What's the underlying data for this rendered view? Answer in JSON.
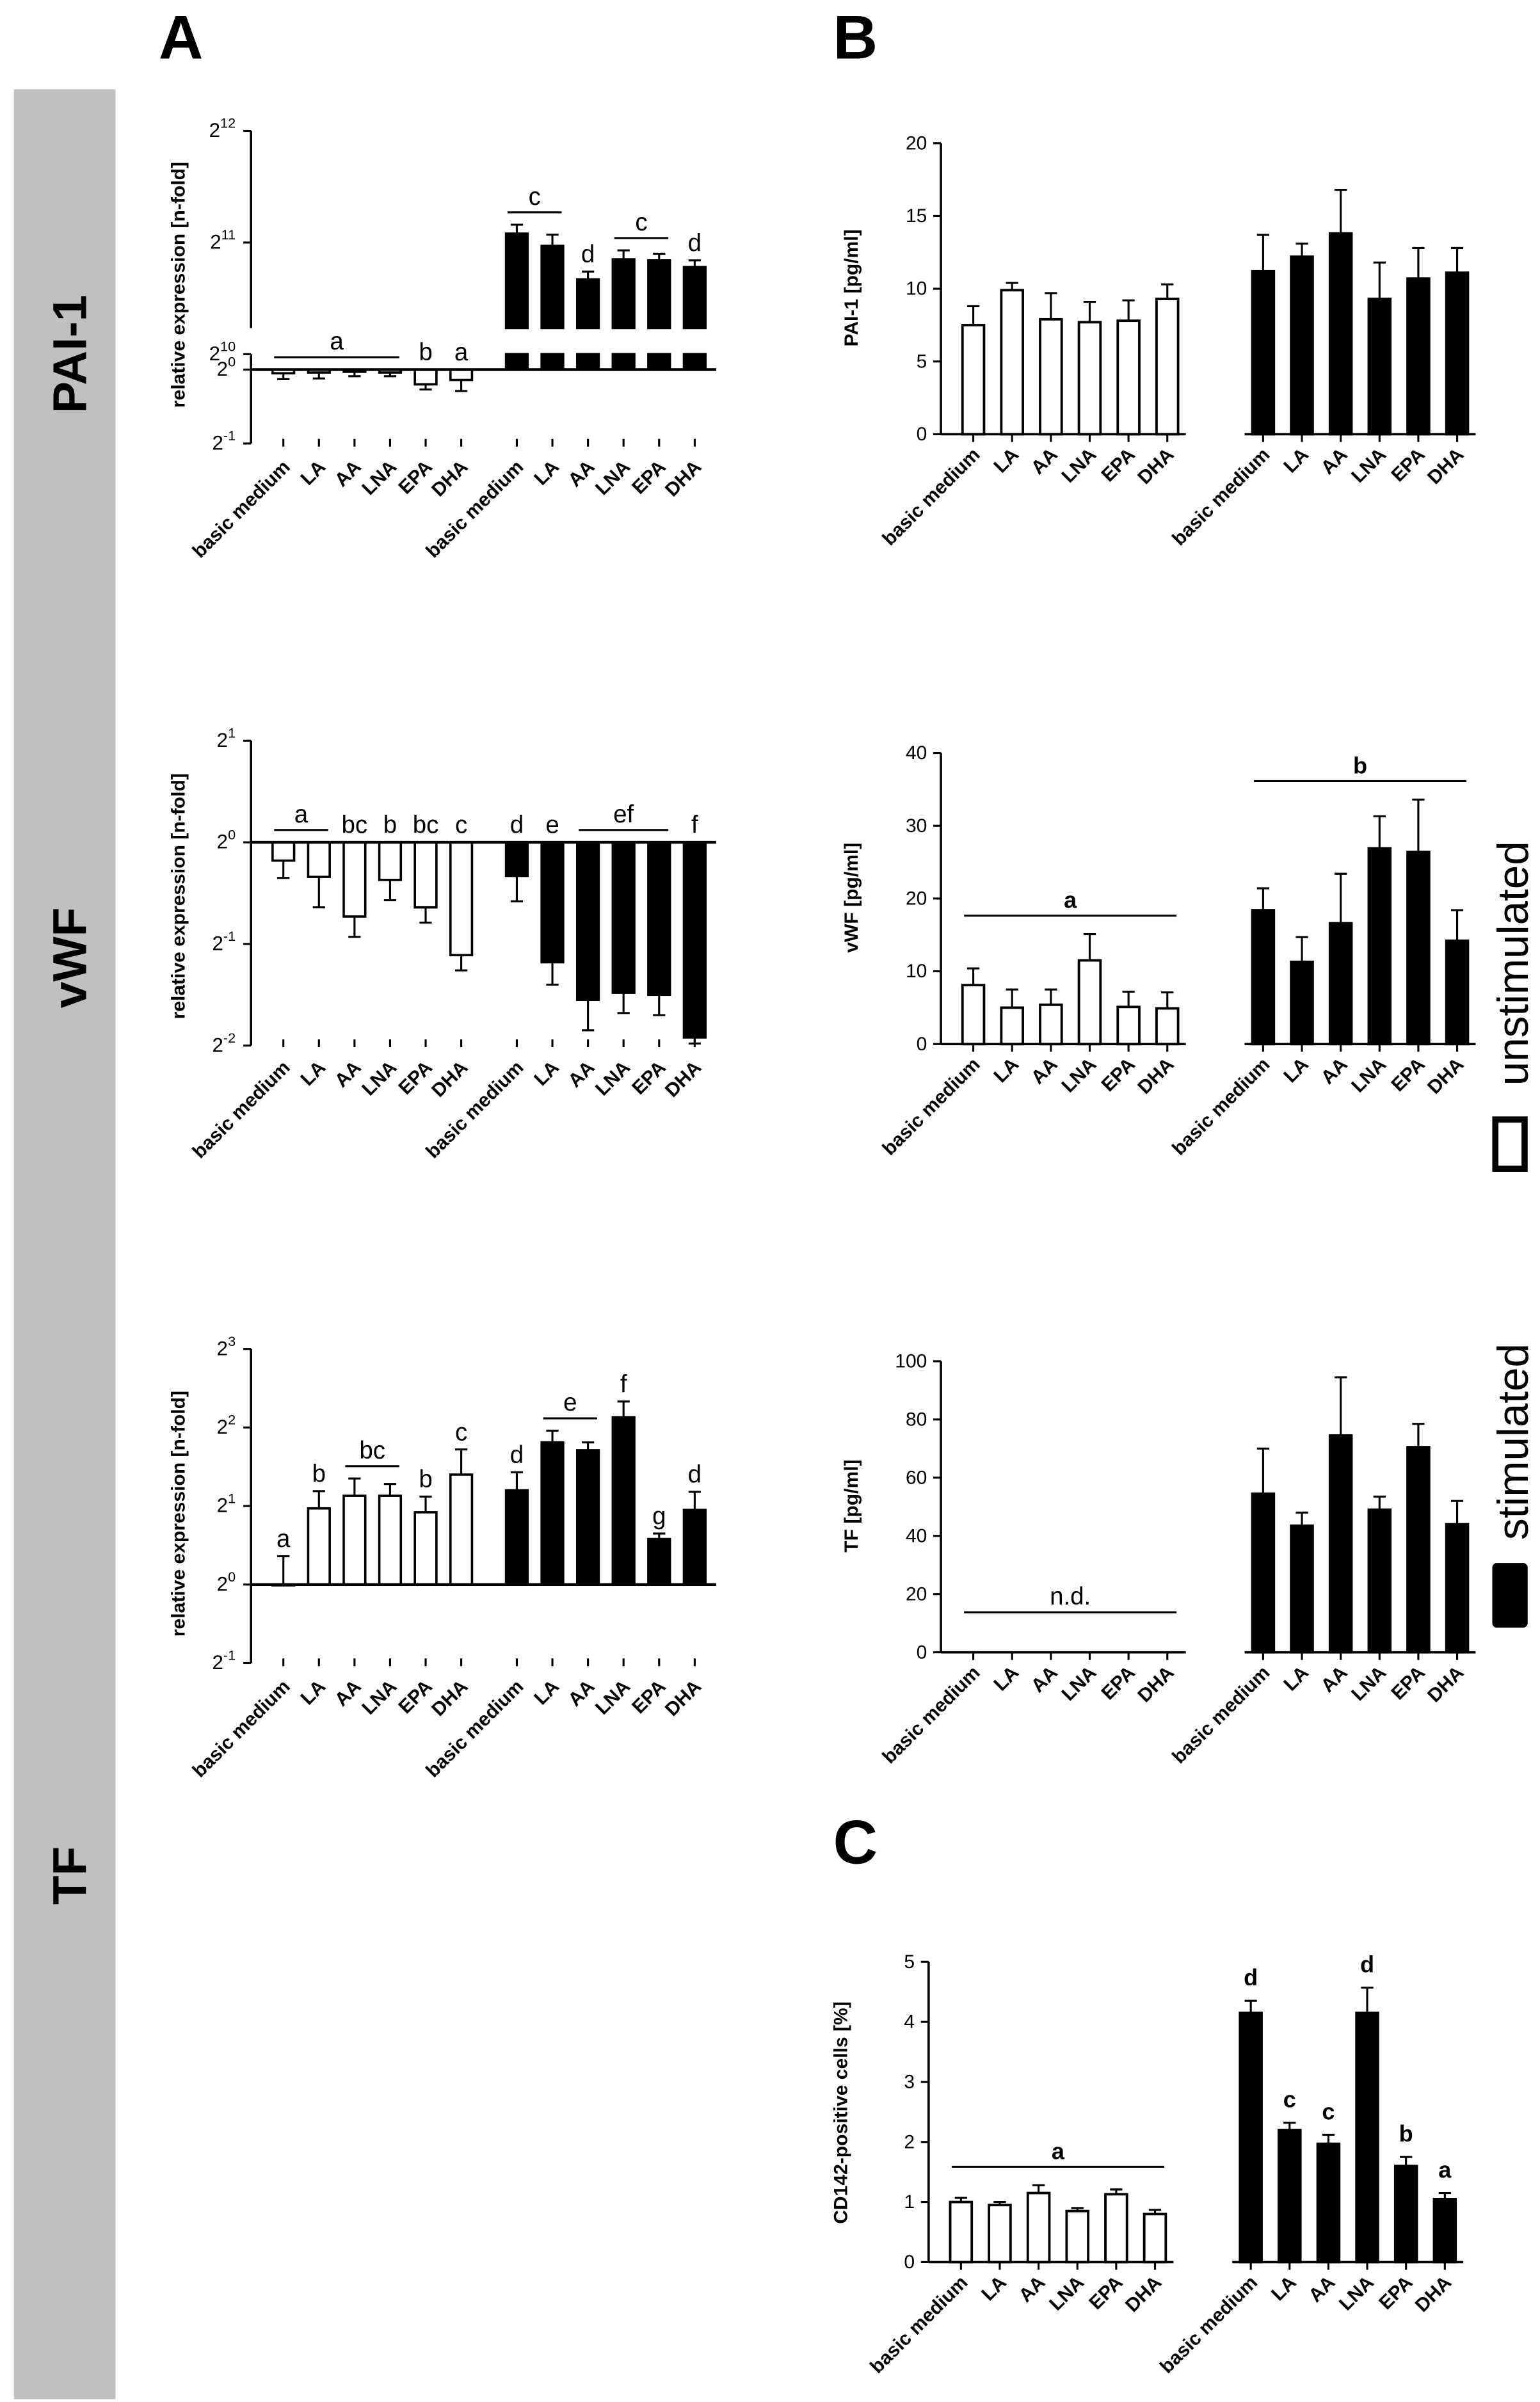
{
  "panel_labels": {
    "A": "A",
    "B": "B",
    "C": "C"
  },
  "row_labels": {
    "pai1": "PAI-1",
    "vwf": "vWF",
    "tf": "TF"
  },
  "legend": {
    "unstimulated": "unstimulated",
    "stimulated": "stimulated"
  },
  "colors": {
    "sidebar": "#c0c0c0",
    "unstimulated_fill": "#ffffff",
    "stimulated_fill": "#000000",
    "axis": "#000000"
  },
  "chart_data": [
    {
      "id": "A_PAI1",
      "type": "bar",
      "scale": "log2",
      "ylabel": "relative expression [n-fold]",
      "categories": [
        "basic medium",
        "LA",
        "AA",
        "LNA",
        "EPA",
        "DHA",
        "basic medium",
        "LA",
        "AA",
        "LNA",
        "EPA",
        "DHA"
      ],
      "groups": [
        "unstimulated",
        "unstimulated",
        "unstimulated",
        "unstimulated",
        "unstimulated",
        "unstimulated",
        "stimulated",
        "stimulated",
        "stimulated",
        "stimulated",
        "stimulated",
        "stimulated"
      ],
      "yticks": [
        {
          "exp": -1,
          "label": "-1"
        },
        {
          "exp": 0,
          "label": "0"
        },
        {
          "exp": 10,
          "label": "10"
        },
        {
          "exp": 11,
          "label": "11"
        },
        {
          "exp": 12,
          "label": "12"
        }
      ],
      "axis_break": "between 2^0 and 2^10",
      "values_log2": [
        -0.05,
        -0.04,
        -0.03,
        -0.04,
        -0.2,
        -0.14,
        11.08,
        10.97,
        10.67,
        10.85,
        10.84,
        10.78
      ],
      "err_log2": [
        0.08,
        0.08,
        0.06,
        0.05,
        0.07,
        0.15,
        0.08,
        0.1,
        0.07,
        0.08,
        0.06,
        0.06
      ],
      "annotations": [
        {
          "text": "a",
          "from": 0,
          "to": 3,
          "line": true
        },
        {
          "text": "b",
          "from": 4,
          "to": 4,
          "line": false
        },
        {
          "text": "a",
          "from": 5,
          "to": 5,
          "line": false
        },
        {
          "text": "c",
          "from": 6,
          "to": 7,
          "line": true
        },
        {
          "text": "d",
          "from": 8,
          "to": 8,
          "line": false
        },
        {
          "text": "c",
          "from": 9,
          "to": 10,
          "line": true
        },
        {
          "text": "d",
          "from": 11,
          "to": 11,
          "line": false
        }
      ]
    },
    {
      "id": "B_PAI1",
      "type": "bar",
      "ylabel": "PAI-1 [pg/ml]",
      "ylim": [
        0,
        20
      ],
      "yticks": [
        0,
        5,
        10,
        15,
        20
      ],
      "categories": [
        "basic medium",
        "LA",
        "AA",
        "LNA",
        "EPA",
        "DHA",
        "basic medium",
        "LA",
        "AA",
        "LNA",
        "EPA",
        "DHA"
      ],
      "values": [
        7.5,
        9.9,
        7.9,
        7.7,
        7.8,
        9.3,
        11.2,
        12.2,
        13.8,
        9.3,
        10.7,
        11.1
      ],
      "err": [
        1.3,
        0.5,
        1.8,
        1.4,
        1.4,
        1.0,
        2.5,
        0.9,
        3.0,
        2.5,
        2.1,
        1.7
      ],
      "annotations": []
    },
    {
      "id": "A_vWF",
      "type": "bar",
      "scale": "log2",
      "ylabel": "relative expression [n-fold]",
      "categories": [
        "basic medium",
        "LA",
        "AA",
        "LNA",
        "EPA",
        "DHA",
        "basic medium",
        "LA",
        "AA",
        "LNA",
        "EPA",
        "DHA"
      ],
      "yticks": [
        {
          "exp": -2,
          "label": "-2"
        },
        {
          "exp": -1,
          "label": "-1"
        },
        {
          "exp": 0,
          "label": "0"
        },
        {
          "exp": 1,
          "label": "1"
        }
      ],
      "values_log2": [
        -0.18,
        -0.34,
        -0.73,
        -0.37,
        -0.64,
        -1.11,
        -0.33,
        -1.18,
        -1.55,
        -1.48,
        -1.5,
        -1.92
      ],
      "err_log2": [
        0.17,
        0.3,
        0.2,
        0.2,
        0.15,
        0.15,
        0.25,
        0.22,
        0.3,
        0.2,
        0.2,
        0.06
      ],
      "annotations": [
        {
          "text": "a",
          "from": 0,
          "to": 1,
          "line": true
        },
        {
          "text": "bc",
          "from": 2,
          "to": 2,
          "line": false
        },
        {
          "text": "b",
          "from": 3,
          "to": 3,
          "line": false
        },
        {
          "text": "bc",
          "from": 4,
          "to": 4,
          "line": false
        },
        {
          "text": "c",
          "from": 5,
          "to": 5,
          "line": false
        },
        {
          "text": "d",
          "from": 6,
          "to": 6,
          "line": false
        },
        {
          "text": "e",
          "from": 7,
          "to": 7,
          "line": false
        },
        {
          "text": "ef",
          "from": 8,
          "to": 10,
          "line": true
        },
        {
          "text": "f",
          "from": 11,
          "to": 11,
          "line": false
        }
      ]
    },
    {
      "id": "B_vWF",
      "type": "bar",
      "ylabel": "vWF [pg/ml]",
      "ylim": [
        0,
        40
      ],
      "yticks": [
        0,
        10,
        20,
        30,
        40
      ],
      "categories": [
        "basic medium",
        "LA",
        "AA",
        "LNA",
        "EPA",
        "DHA",
        "basic medium",
        "LA",
        "AA",
        "LNA",
        "EPA",
        "DHA"
      ],
      "values": [
        8.1,
        5.0,
        5.4,
        11.5,
        5.1,
        4.9,
        18.4,
        11.3,
        16.6,
        26.9,
        26.4,
        14.2
      ],
      "err": [
        2.3,
        2.5,
        2.1,
        3.6,
        2.1,
        2.2,
        3.0,
        3.4,
        6.8,
        4.4,
        7.2,
        4.2
      ],
      "annotations": [
        {
          "text": "a",
          "from": 0,
          "to": 5,
          "line": true,
          "bold": true
        },
        {
          "text": "b",
          "from": 6,
          "to": 11,
          "line": true,
          "bold": true
        }
      ]
    },
    {
      "id": "A_TF",
      "type": "bar",
      "scale": "log2",
      "ylabel": "relative expression [n-fold]",
      "categories": [
        "basic medium",
        "LA",
        "AA",
        "LNA",
        "EPA",
        "DHA",
        "basic medium",
        "LA",
        "AA",
        "LNA",
        "EPA",
        "DHA"
      ],
      "yticks": [
        {
          "exp": -1,
          "label": "-1"
        },
        {
          "exp": 0,
          "label": "0"
        },
        {
          "exp": 1,
          "label": "1"
        },
        {
          "exp": 2,
          "label": "2"
        },
        {
          "exp": 3,
          "label": "3"
        }
      ],
      "values_log2": [
        0.0,
        0.97,
        1.13,
        1.13,
        0.92,
        1.4,
        1.2,
        1.81,
        1.71,
        2.13,
        0.58,
        0.95
      ],
      "err_log2": [
        0.36,
        0.22,
        0.22,
        0.15,
        0.2,
        0.32,
        0.23,
        0.15,
        0.1,
        0.2,
        0.07,
        0.23
      ],
      "annotations": [
        {
          "text": "a",
          "from": 0,
          "to": 0,
          "line": false
        },
        {
          "text": "b",
          "from": 1,
          "to": 1,
          "line": false
        },
        {
          "text": "bc",
          "from": 2,
          "to": 3,
          "line": true
        },
        {
          "text": "b",
          "from": 4,
          "to": 4,
          "line": false
        },
        {
          "text": "c",
          "from": 5,
          "to": 5,
          "line": false
        },
        {
          "text": "d",
          "from": 6,
          "to": 6,
          "line": false
        },
        {
          "text": "e",
          "from": 7,
          "to": 8,
          "line": true
        },
        {
          "text": "f",
          "from": 9,
          "to": 9,
          "line": false
        },
        {
          "text": "g",
          "from": 10,
          "to": 10,
          "line": false
        },
        {
          "text": "d",
          "from": 11,
          "to": 11,
          "line": false
        }
      ]
    },
    {
      "id": "B_TF",
      "type": "bar",
      "ylabel": "TF [pg/ml]",
      "ylim": [
        0,
        100
      ],
      "yticks": [
        0,
        20,
        40,
        60,
        80,
        100
      ],
      "categories": [
        "basic medium",
        "LA",
        "AA",
        "LNA",
        "EPA",
        "DHA",
        "basic medium",
        "LA",
        "AA",
        "LNA",
        "EPA",
        "DHA"
      ],
      "values": [
        0,
        0,
        0,
        0,
        0,
        0,
        54.5,
        43.5,
        74.5,
        49.0,
        70.5,
        44.0
      ],
      "err": [
        0,
        0,
        0,
        0,
        0,
        0,
        15.5,
        4.5,
        20.0,
        4.5,
        8.0,
        8.0
      ],
      "annotations": [
        {
          "text": "n.d.",
          "from": 0,
          "to": 5,
          "line": true
        }
      ]
    },
    {
      "id": "C_CD142",
      "type": "bar",
      "ylabel": "CD142-positive cells [%]",
      "ylim": [
        0,
        5
      ],
      "yticks": [
        0,
        1,
        2,
        3,
        4,
        5
      ],
      "categories": [
        "basic medium",
        "LA",
        "AA",
        "LNA",
        "EPA",
        "DHA",
        "basic medium",
        "LA",
        "AA",
        "LNA",
        "EPA",
        "DHA"
      ],
      "values": [
        1.0,
        0.95,
        1.15,
        0.85,
        1.13,
        0.8,
        4.15,
        2.2,
        1.97,
        4.15,
        1.6,
        1.05
      ],
      "err": [
        0.07,
        0.05,
        0.13,
        0.05,
        0.08,
        0.07,
        0.2,
        0.12,
        0.15,
        0.42,
        0.15,
        0.1
      ],
      "annotations": [
        {
          "text": "a",
          "from": 0,
          "to": 5,
          "line": true,
          "bold": true
        },
        {
          "text": "d",
          "from": 6,
          "to": 6,
          "line": false,
          "bold": true
        },
        {
          "text": "c",
          "from": 7,
          "to": 7,
          "line": false,
          "bold": true
        },
        {
          "text": "c",
          "from": 8,
          "to": 8,
          "line": false,
          "bold": true
        },
        {
          "text": "d",
          "from": 9,
          "to": 9,
          "line": false,
          "bold": true
        },
        {
          "text": "b",
          "from": 10,
          "to": 10,
          "line": false,
          "bold": true
        },
        {
          "text": "a",
          "from": 11,
          "to": 11,
          "line": false,
          "bold": true
        }
      ]
    }
  ]
}
